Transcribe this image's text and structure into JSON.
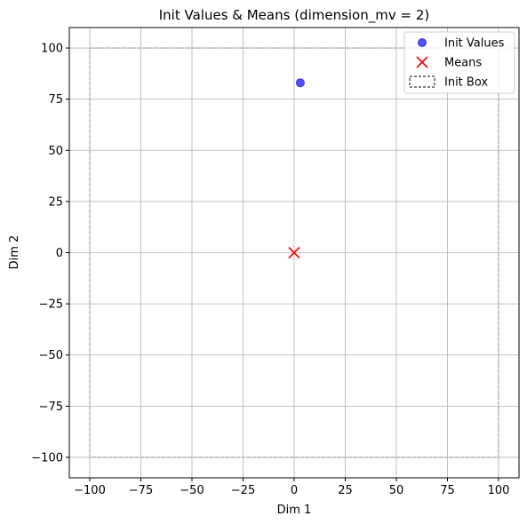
{
  "chart_data": {
    "type": "scatter",
    "title": "Init Values & Means (dimension_mv = 2)",
    "xlabel": "Dim 1",
    "ylabel": "Dim 2",
    "xlim": [
      -110,
      110
    ],
    "ylim": [
      -110,
      110
    ],
    "xticks": [
      -100,
      -75,
      -50,
      -25,
      0,
      25,
      50,
      75,
      100
    ],
    "yticks": [
      -100,
      -75,
      -50,
      -25,
      0,
      25,
      50,
      75,
      100
    ],
    "grid": true,
    "legend_position": "top-right",
    "series": [
      {
        "name": "Init Values",
        "marker": "circle",
        "color": "#3333ff",
        "points": [
          [
            3,
            83
          ]
        ]
      },
      {
        "name": "Means",
        "marker": "x",
        "color": "#ff0000",
        "points": [
          [
            0,
            0
          ]
        ]
      }
    ],
    "box": {
      "name": "Init Box",
      "x": [
        -100,
        100
      ],
      "y": [
        -100,
        100
      ],
      "style": "dashed",
      "color": "#bbbbbb"
    }
  }
}
